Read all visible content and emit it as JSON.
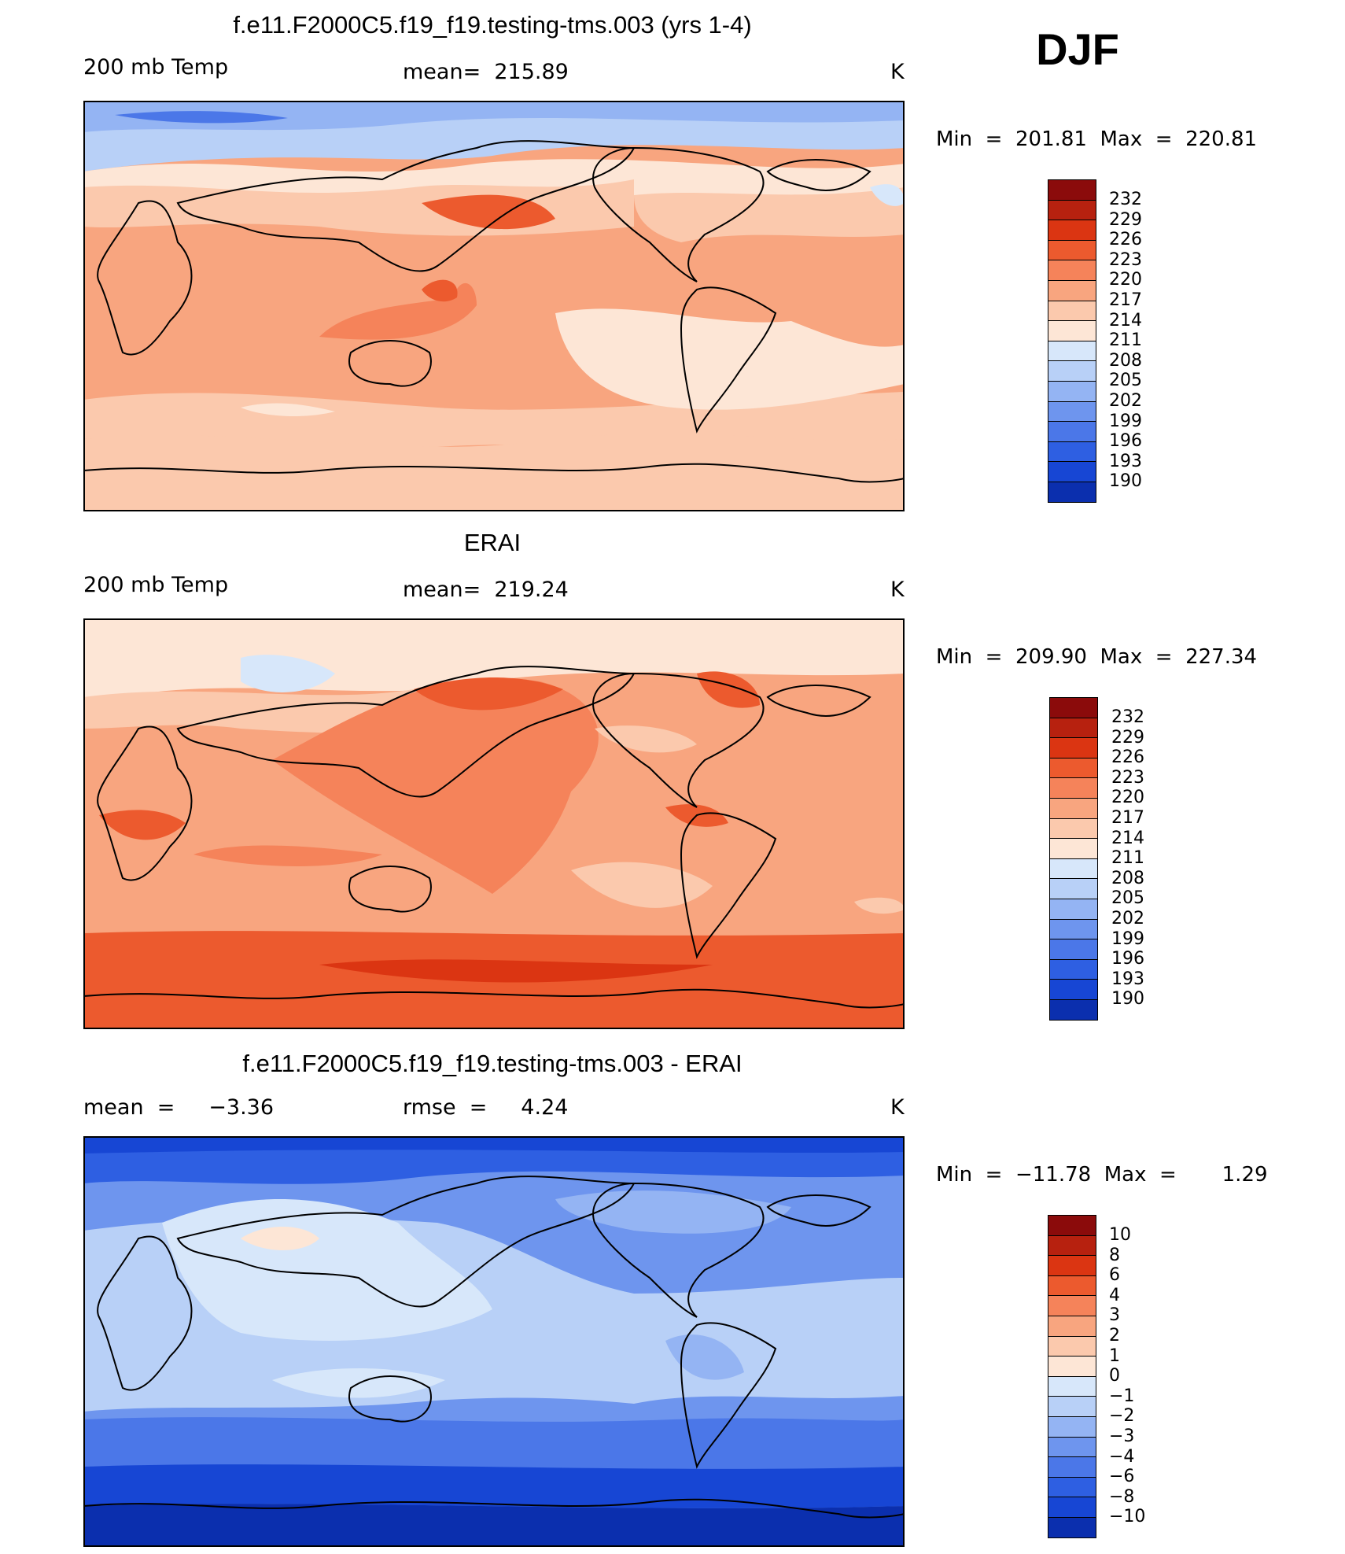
{
  "season": "DJF",
  "units": "K",
  "colors": {
    "warm": [
      "#fde6d6",
      "#fbc9ad",
      "#f8a57f",
      "#f5835a",
      "#ec5a2e",
      "#db3512",
      "#b7210f",
      "#8b0b0b"
    ],
    "cool": [
      "#d7e7fa",
      "#b8d0f7",
      "#94b4f3",
      "#6e95ee",
      "#4b77e8",
      "#2e5fe2",
      "#1746d4",
      "#0b2fae",
      "#061a85"
    ],
    "land_outline": "#000000"
  },
  "panels": [
    {
      "title": "f.e11.F2000C5.f19_f19.testing-tms.003 (yrs 1-4)",
      "variable": "200 mb Temp",
      "stat": "mean=  215.89",
      "unit": "K",
      "minmax": "Min  =  201.81  Max  =  220.81",
      "colorbar_labels": [
        "232",
        "229",
        "226",
        "223",
        "220",
        "217",
        "214",
        "211",
        "208",
        "205",
        "202",
        "199",
        "196",
        "193",
        "190"
      ],
      "palette": "model"
    },
    {
      "title": "ERAI",
      "variable": "200 mb Temp",
      "stat": "mean=  219.24",
      "unit": "K",
      "minmax": "Min  =  209.90  Max  =  227.34",
      "colorbar_labels": [
        "232",
        "229",
        "226",
        "223",
        "220",
        "217",
        "214",
        "211",
        "208",
        "205",
        "202",
        "199",
        "196",
        "193",
        "190"
      ],
      "palette": "obs"
    },
    {
      "title": "f.e11.F2000C5.f19_f19.testing-tms.003 - ERAI",
      "variable": "mean  =     −3.36",
      "stat": "rmse  =     4.24",
      "unit": "K",
      "minmax": "Min  =  −11.78  Max  =       1.29",
      "colorbar_labels": [
        "10",
        "8",
        "6",
        "4",
        "3",
        "2",
        "1",
        "0",
        "−1",
        "−2",
        "−3",
        "−4",
        "−6",
        "−8",
        "−10"
      ],
      "palette": "diff"
    }
  ],
  "colorbar_colors": [
    "#8b0b0b",
    "#b7210f",
    "#db3512",
    "#ec5a2e",
    "#f5835a",
    "#f8a57f",
    "#fbc9ad",
    "#fde6d6",
    "#d7e7fa",
    "#b8d0f7",
    "#94b4f3",
    "#6e95ee",
    "#4b77e8",
    "#2e5fe2",
    "#1746d4",
    "#0b2fae"
  ]
}
